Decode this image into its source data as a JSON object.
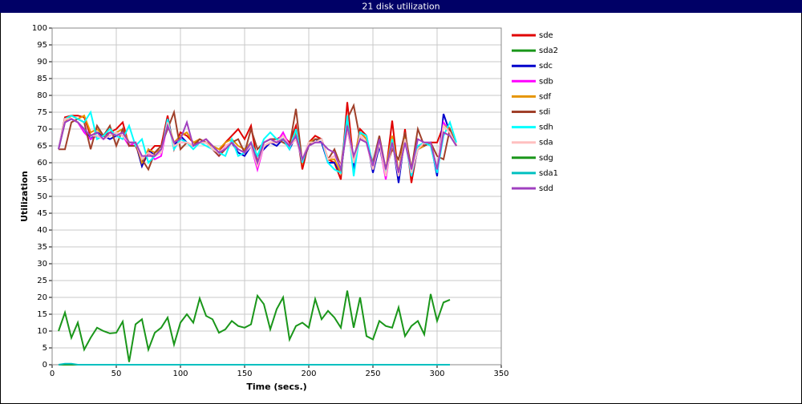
{
  "chart_data": {
    "type": "line",
    "title": "21 disk utilization",
    "x_label": "Time (secs.)",
    "y_label": "Utilization",
    "xlim": [
      0,
      350
    ],
    "xticks": [
      0,
      50,
      100,
      150,
      200,
      250,
      300,
      350
    ],
    "ylim": [
      0,
      100
    ],
    "yticks": [
      0,
      5,
      10,
      15,
      20,
      25,
      30,
      35,
      40,
      45,
      50,
      55,
      60,
      65,
      70,
      75,
      80,
      85,
      90,
      95,
      100
    ],
    "grid": true,
    "legend": "right",
    "x": [
      5,
      10,
      15,
      20,
      25,
      30,
      35,
      40,
      45,
      50,
      55,
      60,
      65,
      70,
      75,
      80,
      85,
      90,
      95,
      100,
      105,
      110,
      115,
      120,
      125,
      130,
      135,
      140,
      145,
      150,
      155,
      160,
      165,
      170,
      175,
      180,
      185,
      190,
      195,
      200,
      205,
      210,
      215,
      220,
      225,
      230,
      235,
      240,
      245,
      250,
      255,
      260,
      265,
      270,
      275,
      280,
      285,
      290,
      295,
      300,
      305,
      310,
      315
    ],
    "series": [
      {
        "name": "sde",
        "color": "#e00000",
        "values": [
          64,
          73.5,
          74,
          74,
          73.5,
          68,
          69,
          68,
          69,
          70,
          72,
          65,
          66,
          59,
          63,
          65,
          65,
          74,
          64,
          69,
          68,
          66,
          66,
          67,
          65,
          63,
          66,
          68,
          70,
          67,
          71,
          60,
          66,
          67,
          67,
          68,
          66,
          71,
          58,
          66,
          68,
          67,
          61,
          60,
          55,
          78,
          60,
          70,
          68,
          58,
          66,
          57,
          72.5,
          56,
          70,
          54,
          65,
          65,
          66,
          66,
          71,
          69,
          65
        ]
      },
      {
        "name": "sda2",
        "color": "#1a961a",
        "values": [
          0,
          0,
          0,
          0,
          0,
          0,
          0,
          0,
          0,
          0,
          0,
          0,
          0,
          0,
          0,
          0,
          0,
          0,
          0,
          0,
          0,
          0,
          0,
          0,
          0,
          0,
          0,
          0,
          0,
          0,
          0,
          0,
          0,
          0,
          0,
          0,
          0,
          0,
          0,
          0,
          0,
          0,
          0,
          0,
          0,
          0,
          0,
          0,
          0,
          0,
          0,
          0,
          0,
          0,
          0,
          0,
          0,
          0,
          0,
          0,
          0,
          0,
          null
        ]
      },
      {
        "name": "sdc",
        "color": "#0000cc",
        "values": [
          64,
          72,
          73,
          72,
          70,
          67,
          69,
          68,
          67,
          68,
          69,
          66,
          66,
          59,
          64,
          62,
          63,
          73,
          65,
          68,
          66,
          65,
          66,
          66,
          65,
          63,
          65,
          66,
          63,
          62,
          65,
          62,
          64,
          66,
          65,
          67,
          64,
          68,
          60,
          65,
          67,
          66,
          60,
          60,
          57,
          72,
          58,
          69,
          67,
          57,
          65,
          56,
          67,
          54,
          68,
          56,
          64,
          65,
          66,
          56,
          74.5,
          69,
          65
        ]
      },
      {
        "name": "sdb",
        "color": "#ff00ff",
        "values": [
          64,
          73,
          73,
          72,
          69,
          67,
          68,
          67,
          68,
          69,
          68,
          65,
          66,
          61,
          63,
          61,
          62,
          72,
          65,
          66,
          66,
          65,
          66,
          66,
          64,
          62,
          65,
          66,
          64,
          63,
          65,
          58,
          65,
          66,
          66,
          69,
          65,
          67,
          61,
          66,
          66,
          67,
          61,
          62,
          59,
          70,
          60,
          68,
          66,
          58,
          66,
          55,
          67,
          56,
          67,
          57,
          64,
          66,
          66,
          58,
          72,
          69,
          65
        ]
      },
      {
        "name": "sdf",
        "color": "#e69500",
        "values": [
          64,
          72,
          74,
          73,
          74,
          69,
          70,
          68,
          68,
          69,
          70,
          66,
          66,
          60,
          64,
          63,
          64,
          72,
          66,
          68,
          69,
          66,
          67,
          66,
          65,
          64,
          66,
          67,
          65,
          64,
          66,
          62,
          65,
          66,
          66,
          67,
          65,
          69,
          60,
          66,
          67,
          67,
          61,
          61,
          57,
          73,
          61,
          69,
          67,
          58,
          66,
          58,
          68,
          57,
          68,
          58,
          64,
          65,
          66,
          58,
          71,
          70,
          65
        ]
      },
      {
        "name": "sdi",
        "color": "#a0402a",
        "values": [
          64,
          64,
          72,
          73,
          72,
          64,
          71,
          68,
          71,
          65,
          70,
          65,
          65,
          61,
          58,
          63,
          65,
          70,
          75,
          64,
          66,
          65,
          67,
          66,
          64,
          62,
          64,
          66,
          67,
          63,
          70,
          64,
          66,
          67,
          67,
          66,
          65,
          76,
          60,
          65,
          67,
          67,
          61,
          64,
          59,
          73,
          77,
          67,
          66,
          60,
          68,
          58,
          64,
          61,
          69,
          58,
          70,
          65,
          66,
          62,
          61,
          70,
          65
        ]
      },
      {
        "name": "sdh",
        "color": "#00ffff",
        "values": [
          64,
          73,
          74,
          73,
          72,
          75,
          67,
          68,
          70,
          68,
          67,
          71,
          65,
          67,
          60,
          62,
          63,
          73,
          64,
          67,
          66,
          64,
          66,
          65,
          64,
          63,
          62,
          67,
          62,
          63,
          66,
          62,
          67,
          69,
          67,
          67,
          64,
          70,
          60,
          66,
          66,
          67,
          60,
          58,
          57,
          74,
          56,
          69,
          68,
          59,
          66,
          57,
          67,
          56,
          67,
          56,
          65,
          66,
          65,
          57,
          68,
          72,
          66
        ]
      },
      {
        "name": "sda",
        "color": "#ffc0c0",
        "values": [
          64,
          73,
          73,
          72,
          70,
          68,
          68,
          67,
          68,
          69,
          68,
          66,
          66,
          61,
          63,
          62,
          63,
          72,
          65,
          66,
          66,
          65,
          66,
          66,
          64,
          63,
          65,
          66,
          64,
          63,
          65,
          59,
          65,
          66,
          66,
          68,
          65,
          67,
          61,
          66,
          66,
          67,
          61,
          62,
          59,
          70,
          60,
          68,
          66,
          58,
          66,
          56,
          66,
          56,
          67,
          57,
          64,
          66,
          66,
          58,
          71,
          69,
          65
        ]
      },
      {
        "name": "sdg",
        "color": "#1a961a",
        "values": [
          10,
          15.5,
          8,
          12.5,
          4.5,
          8,
          11,
          10,
          9.3,
          9.5,
          12.8,
          0.8,
          12,
          13.5,
          4.5,
          9.5,
          11,
          14,
          6,
          12.5,
          15,
          12.5,
          19.7,
          14.5,
          13.5,
          9.5,
          10.5,
          13,
          11.5,
          11,
          12,
          20.5,
          18,
          10.5,
          16.5,
          20,
          7.5,
          11.5,
          12.5,
          11,
          19.5,
          13.5,
          16,
          14,
          11,
          22,
          11,
          20,
          8.5,
          7.5,
          13,
          11.5,
          11,
          17,
          8.5,
          11.5,
          13,
          9,
          21,
          13,
          18.5,
          19.3,
          null
        ]
      },
      {
        "name": "sda1",
        "color": "#00c0c0",
        "values": [
          0,
          0.3,
          0.3,
          0,
          0,
          0,
          0,
          0,
          0,
          0,
          0,
          0,
          0,
          0,
          0,
          0,
          0,
          0,
          0,
          0,
          0,
          0,
          0,
          0,
          0,
          0,
          0,
          0,
          0,
          0,
          0,
          0,
          0,
          0,
          0,
          0,
          0,
          0,
          0,
          0,
          0,
          0,
          0,
          0,
          0,
          0,
          0,
          0,
          0,
          0,
          0,
          0,
          0,
          0,
          0,
          0,
          0,
          0,
          0,
          0,
          0,
          0,
          null
        ]
      },
      {
        "name": "sdd",
        "color": "#a040c0",
        "values": [
          64,
          72,
          73,
          72,
          70,
          68,
          69,
          67,
          69,
          68,
          69,
          66,
          66,
          62,
          62,
          62,
          64,
          71,
          66,
          67,
          72,
          65,
          66,
          67,
          65,
          63,
          64,
          66,
          64,
          63,
          66,
          60,
          66,
          67,
          66,
          67,
          65,
          68,
          61,
          65,
          66,
          66,
          64,
          63,
          58,
          71,
          62,
          67,
          66,
          59,
          67,
          58,
          66,
          57,
          66,
          58,
          67,
          66,
          66,
          58,
          69,
          68,
          65
        ]
      }
    ]
  }
}
